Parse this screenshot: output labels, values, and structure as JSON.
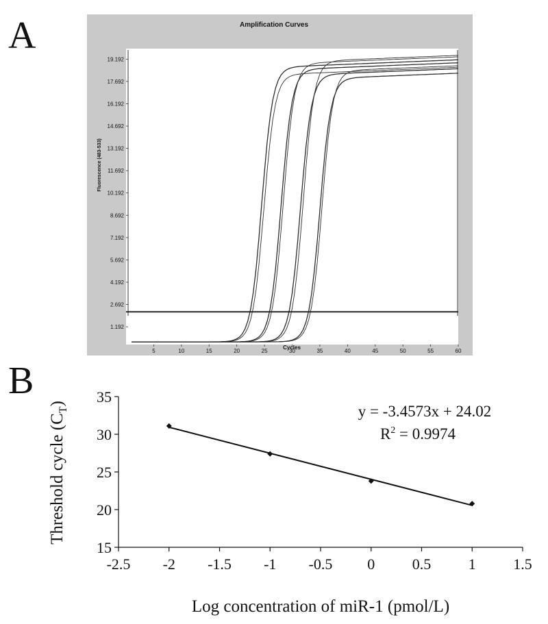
{
  "panels": {
    "a_letter": "A",
    "b_letter": "B"
  },
  "chart_data": [
    {
      "type": "line",
      "title": "Amplification Curves",
      "xlabel": "Cycles",
      "ylabel": "Fluorescence (483-533)",
      "xlim": [
        0,
        60
      ],
      "ylim": [
        0,
        19.9
      ],
      "xticks": [
        5,
        10,
        15,
        20,
        25,
        30,
        35,
        40,
        45,
        50,
        55,
        60
      ],
      "yticks": [
        1.192,
        2.692,
        4.192,
        5.692,
        7.192,
        8.692,
        10.192,
        11.692,
        13.192,
        14.692,
        16.192,
        17.692,
        19.192
      ],
      "ytick_labels": [
        "1.192",
        "2.692",
        "4.192",
        "5.692",
        "7.192",
        "8.692",
        "10.192",
        "11.692",
        "13.192",
        "14.692",
        "16.192",
        "17.692",
        "19.192"
      ],
      "threshold": 2.2,
      "baseline": 0.18,
      "curves": [
        {
          "midpoint": 24.5,
          "plateau": 18.7
        },
        {
          "midpoint": 24.9,
          "plateau": 18.2
        },
        {
          "midpoint": 28.0,
          "plateau": 18.5
        },
        {
          "midpoint": 28.4,
          "plateau": 18.9
        },
        {
          "midpoint": 31.5,
          "plateau": 18.1
        },
        {
          "midpoint": 32.0,
          "plateau": 19.0
        },
        {
          "midpoint": 35.0,
          "plateau": 17.8
        },
        {
          "midpoint": 35.4,
          "plateau": 18.3
        }
      ],
      "colors": {
        "frame": "#c9c9c9",
        "plot_bg": "#ffffff",
        "line": "#2b2b2b"
      }
    },
    {
      "type": "scatter",
      "xlabel": "Log concentration of miR-1 (pmol/L)",
      "ylabel": "Threshold cycle (C",
      "ylabel_sub": "T",
      "ylabel_close": ")",
      "xlim": [
        -2.5,
        1.5
      ],
      "ylim": [
        15,
        35
      ],
      "xticks": [
        -2.5,
        -2,
        -1.5,
        -1,
        -0.5,
        0,
        0.5,
        1,
        1.5
      ],
      "xtick_labels": [
        "-2.5",
        "-2",
        "-1.5",
        "-1",
        "-0.5",
        "0",
        "0.5",
        "1",
        "1.5"
      ],
      "yticks": [
        15,
        20,
        25,
        30,
        35
      ],
      "ytick_labels": [
        "15",
        "20",
        "25",
        "30",
        "35"
      ],
      "x": [
        -2,
        -1,
        0,
        1
      ],
      "y": [
        31.1,
        27.4,
        23.8,
        20.8
      ],
      "trendline": {
        "slope": -3.4573,
        "intercept": 24.02
      },
      "equation": "y = -3.4573x + 24.02",
      "r2_prefix": "R",
      "r2_sup": "2",
      "r2_value": " = 0.9974",
      "colors": {
        "axis": "#111111",
        "marker": "#111111"
      }
    }
  ]
}
